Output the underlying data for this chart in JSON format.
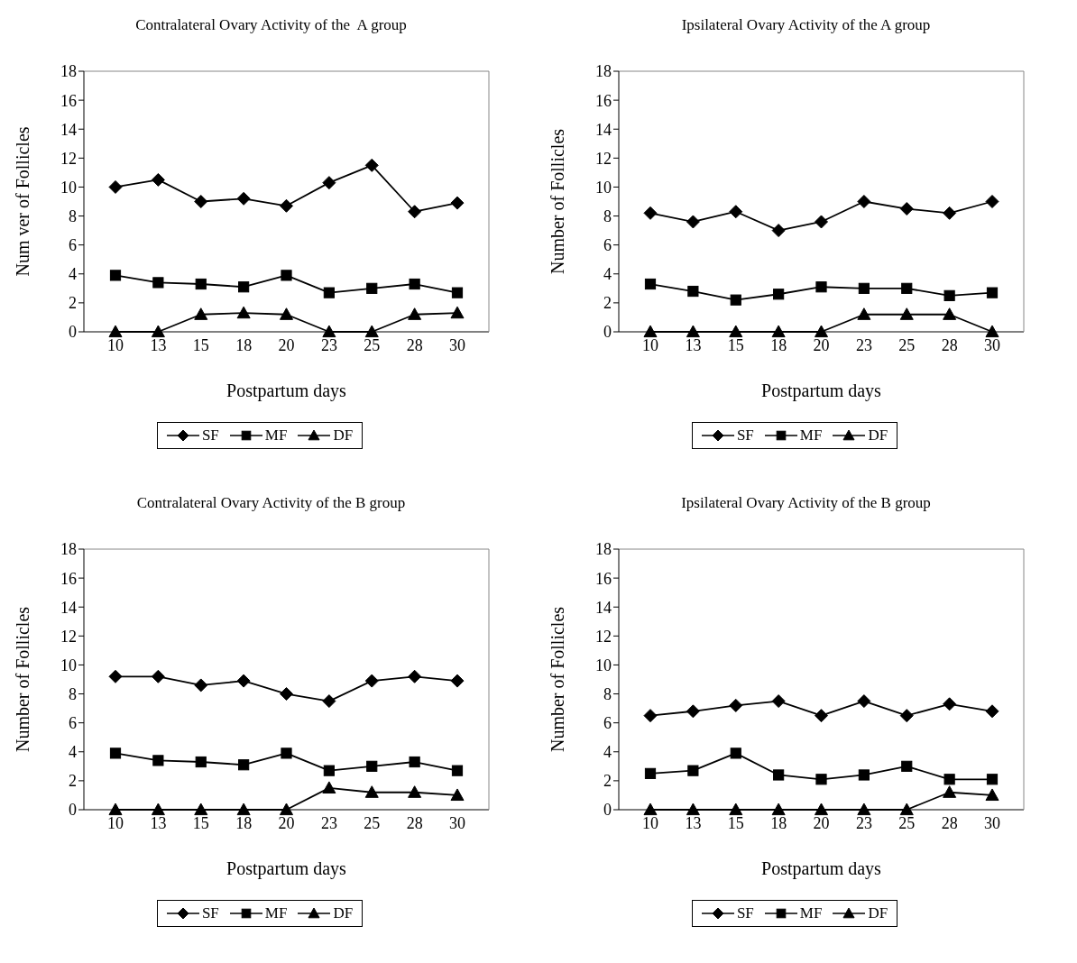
{
  "chart_data": [
    {
      "type": "line",
      "title": "Contralateral Ovary Activity of the  A group",
      "xlabel": "Postpartum days",
      "ylabel": "Num ver of Follicles",
      "categories": [
        "10",
        "13",
        "15",
        "18",
        "20",
        "23",
        "25",
        "28",
        "30"
      ],
      "ylim": [
        0,
        18
      ],
      "yticks": [
        0,
        2,
        4,
        6,
        8,
        10,
        12,
        14,
        16,
        18
      ],
      "legend": "bottom",
      "series": [
        {
          "name": "SF",
          "color": "#000000",
          "marker": "diamond",
          "values": [
            10,
            10.5,
            9,
            9.2,
            8.7,
            10.3,
            11.5,
            8.3,
            8.9
          ]
        },
        {
          "name": "MF",
          "color": "#000000",
          "marker": "square",
          "values": [
            3.9,
            3.4,
            3.3,
            3.1,
            3.9,
            2.7,
            3,
            3.3,
            2.7
          ]
        },
        {
          "name": "DF",
          "color": "#000000",
          "marker": "triangle",
          "values": [
            0,
            0,
            1.2,
            1.3,
            1.2,
            0,
            0,
            1.2,
            1.3
          ]
        }
      ]
    },
    {
      "type": "line",
      "title": "Ipsilateral Ovary Activity of the A group",
      "xlabel": "Postpartum days",
      "ylabel": "Number of Follicles",
      "categories": [
        "10",
        "13",
        "15",
        "18",
        "20",
        "23",
        "25",
        "28",
        "30"
      ],
      "ylim": [
        0,
        18
      ],
      "yticks": [
        0,
        2,
        4,
        6,
        8,
        10,
        12,
        14,
        16,
        18
      ],
      "legend": "bottom",
      "series": [
        {
          "name": "SF",
          "color": "#000000",
          "marker": "diamond",
          "values": [
            8.2,
            7.6,
            8.3,
            7,
            7.6,
            9,
            8.5,
            8.2,
            9
          ]
        },
        {
          "name": "MF",
          "color": "#000000",
          "marker": "square",
          "values": [
            3.3,
            2.8,
            2.2,
            2.6,
            3.1,
            3,
            3,
            2.5,
            2.7
          ]
        },
        {
          "name": "DF",
          "color": "#000000",
          "marker": "triangle",
          "values": [
            0,
            0,
            0,
            0,
            0,
            1.2,
            1.2,
            1.2,
            0
          ]
        }
      ]
    },
    {
      "type": "line",
      "title": "Contralateral Ovary Activity of the B group",
      "xlabel": "Postpartum days",
      "ylabel": "Number of Follicles",
      "categories": [
        "10",
        "13",
        "15",
        "18",
        "20",
        "23",
        "25",
        "28",
        "30"
      ],
      "ylim": [
        0,
        18
      ],
      "yticks": [
        0,
        2,
        4,
        6,
        8,
        10,
        12,
        14,
        16,
        18
      ],
      "legend": "bottom",
      "series": [
        {
          "name": "SF",
          "color": "#000000",
          "marker": "diamond",
          "values": [
            9.2,
            9.2,
            8.6,
            8.9,
            8,
            7.5,
            8.9,
            9.2,
            8.9
          ]
        },
        {
          "name": "MF",
          "color": "#000000",
          "marker": "square",
          "values": [
            3.9,
            3.4,
            3.3,
            3.1,
            3.9,
            2.7,
            3,
            3.3,
            2.7
          ]
        },
        {
          "name": "DF",
          "color": "#000000",
          "marker": "triangle",
          "values": [
            0,
            0,
            0,
            0,
            0,
            1.5,
            1.2,
            1.2,
            1
          ]
        }
      ]
    },
    {
      "type": "line",
      "title": "Ipsilateral Ovary Activity of the B group",
      "xlabel": "Postpartum days",
      "ylabel": "Number of Follicles",
      "categories": [
        "10",
        "13",
        "15",
        "18",
        "20",
        "23",
        "25",
        "28",
        "30"
      ],
      "ylim": [
        0,
        18
      ],
      "yticks": [
        0,
        2,
        4,
        6,
        8,
        10,
        12,
        14,
        16,
        18
      ],
      "legend": "bottom",
      "series": [
        {
          "name": "SF",
          "color": "#000000",
          "marker": "diamond",
          "values": [
            6.5,
            6.8,
            7.2,
            7.5,
            6.5,
            7.5,
            6.5,
            7.3,
            6.8
          ]
        },
        {
          "name": "MF",
          "color": "#000000",
          "marker": "square",
          "values": [
            2.5,
            2.7,
            3.9,
            2.4,
            2.1,
            2.4,
            3,
            2.1,
            2.1
          ]
        },
        {
          "name": "DF",
          "color": "#000000",
          "marker": "triangle",
          "values": [
            0,
            0,
            0,
            0,
            0,
            0,
            0,
            1.2,
            1
          ]
        }
      ]
    }
  ]
}
